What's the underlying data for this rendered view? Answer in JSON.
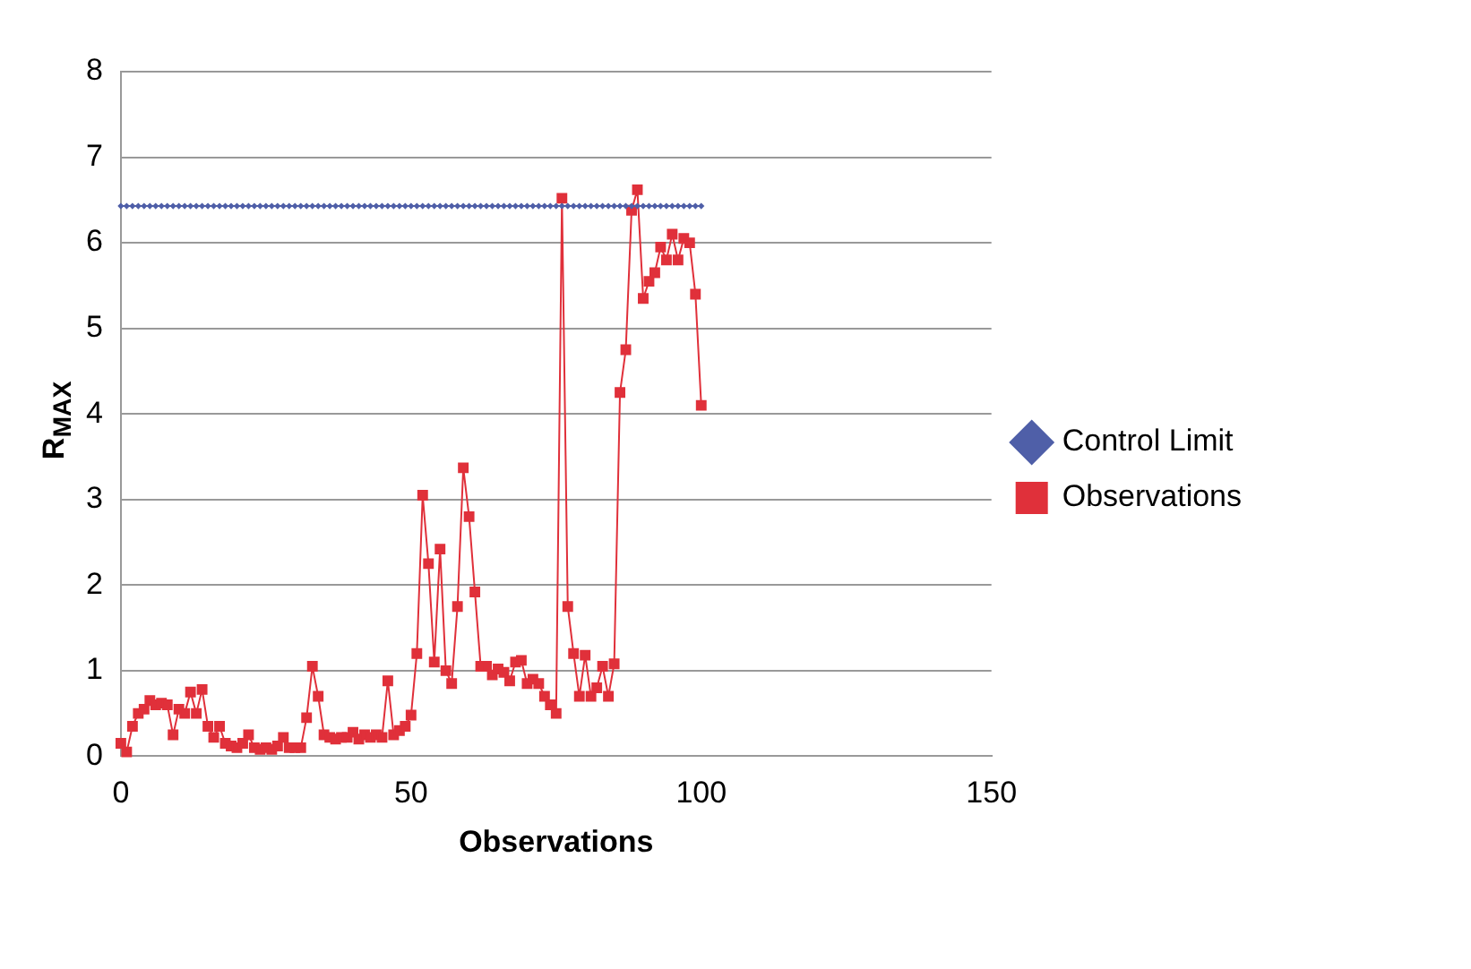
{
  "chart_data": {
    "type": "line",
    "xlabel": "Observations",
    "ylabel": "R$_{MAX}$",
    "xlim": [
      0,
      150
    ],
    "xticks": [
      0,
      50,
      100,
      150
    ],
    "ylim": [
      0,
      8
    ],
    "yticks": [
      0,
      1,
      2,
      3,
      4,
      5,
      6,
      7,
      8
    ],
    "grid": "y",
    "legend": "right",
    "series": [
      {
        "name": "Control Limit",
        "color": "#4f5fa8",
        "marker": "diamond",
        "x": [
          0,
          1,
          2,
          3,
          4,
          5,
          6,
          7,
          8,
          9,
          10,
          11,
          12,
          13,
          14,
          15,
          16,
          17,
          18,
          19,
          20,
          21,
          22,
          23,
          24,
          25,
          26,
          27,
          28,
          29,
          30,
          31,
          32,
          33,
          34,
          35,
          36,
          37,
          38,
          39,
          40,
          41,
          42,
          43,
          44,
          45,
          46,
          47,
          48,
          49,
          50,
          51,
          52,
          53,
          54,
          55,
          56,
          57,
          58,
          59,
          60,
          61,
          62,
          63,
          64,
          65,
          66,
          67,
          68,
          69,
          70,
          71,
          72,
          73,
          74,
          75,
          76,
          77,
          78,
          79,
          80,
          81,
          82,
          83,
          84,
          85,
          86,
          87,
          88,
          89,
          90,
          91,
          92,
          93,
          94,
          95,
          96,
          97,
          98,
          99,
          100
        ],
        "values": [
          6.43,
          6.43,
          6.43,
          6.43,
          6.43,
          6.43,
          6.43,
          6.43,
          6.43,
          6.43,
          6.43,
          6.43,
          6.43,
          6.43,
          6.43,
          6.43,
          6.43,
          6.43,
          6.43,
          6.43,
          6.43,
          6.43,
          6.43,
          6.43,
          6.43,
          6.43,
          6.43,
          6.43,
          6.43,
          6.43,
          6.43,
          6.43,
          6.43,
          6.43,
          6.43,
          6.43,
          6.43,
          6.43,
          6.43,
          6.43,
          6.43,
          6.43,
          6.43,
          6.43,
          6.43,
          6.43,
          6.43,
          6.43,
          6.43,
          6.43,
          6.43,
          6.43,
          6.43,
          6.43,
          6.43,
          6.43,
          6.43,
          6.43,
          6.43,
          6.43,
          6.43,
          6.43,
          6.43,
          6.43,
          6.43,
          6.43,
          6.43,
          6.43,
          6.43,
          6.43,
          6.43,
          6.43,
          6.43,
          6.43,
          6.43,
          6.43,
          6.43,
          6.43,
          6.43,
          6.43,
          6.43,
          6.43,
          6.43,
          6.43,
          6.43,
          6.43,
          6.43,
          6.43,
          6.43,
          6.43,
          6.43,
          6.43,
          6.43,
          6.43,
          6.43,
          6.43,
          6.43,
          6.43,
          6.43,
          6.43,
          6.43
        ]
      },
      {
        "name": "Observations",
        "color": "#e0303a",
        "marker": "square",
        "x": [
          0,
          1,
          2,
          3,
          4,
          5,
          6,
          7,
          8,
          9,
          10,
          11,
          12,
          13,
          14,
          15,
          16,
          17,
          18,
          19,
          20,
          21,
          22,
          23,
          24,
          25,
          26,
          27,
          28,
          29,
          30,
          31,
          32,
          33,
          34,
          35,
          36,
          37,
          38,
          39,
          40,
          41,
          42,
          43,
          44,
          45,
          46,
          47,
          48,
          49,
          50,
          51,
          52,
          53,
          54,
          55,
          56,
          57,
          58,
          59,
          60,
          61,
          62,
          63,
          64,
          65,
          66,
          67,
          68,
          69,
          70,
          71,
          72,
          73,
          74,
          75,
          76,
          77,
          78,
          79,
          80,
          81,
          82,
          83,
          84,
          85,
          86,
          87,
          88,
          89,
          90,
          91,
          92,
          93,
          94,
          95,
          96,
          97,
          98,
          99,
          100
        ],
        "values": [
          0.15,
          0.05,
          0.35,
          0.5,
          0.55,
          0.65,
          0.6,
          0.62,
          0.6,
          0.25,
          0.55,
          0.5,
          0.75,
          0.5,
          0.78,
          0.35,
          0.22,
          0.35,
          0.15,
          0.12,
          0.1,
          0.15,
          0.25,
          0.1,
          0.08,
          0.1,
          0.08,
          0.12,
          0.22,
          0.1,
          0.1,
          0.1,
          0.45,
          1.05,
          0.7,
          0.25,
          0.22,
          0.2,
          0.22,
          0.22,
          0.28,
          0.2,
          0.25,
          0.22,
          0.25,
          0.22,
          0.88,
          0.25,
          0.3,
          0.35,
          0.48,
          1.2,
          3.05,
          2.25,
          1.1,
          2.42,
          1.0,
          0.85,
          1.75,
          3.37,
          2.8,
          1.92,
          1.05,
          1.05,
          0.95,
          1.02,
          0.98,
          0.88,
          1.1,
          1.12,
          0.85,
          0.9,
          0.85,
          0.7,
          0.6,
          0.5,
          6.52,
          1.75,
          1.2,
          0.7,
          1.18,
          0.7,
          0.8,
          1.05,
          0.7,
          1.08,
          4.25,
          4.75,
          6.38,
          6.62,
          5.35,
          5.55,
          5.65,
          5.95,
          5.8,
          6.1,
          5.8,
          6.05,
          6.0,
          5.4,
          4.1
        ]
      }
    ]
  }
}
